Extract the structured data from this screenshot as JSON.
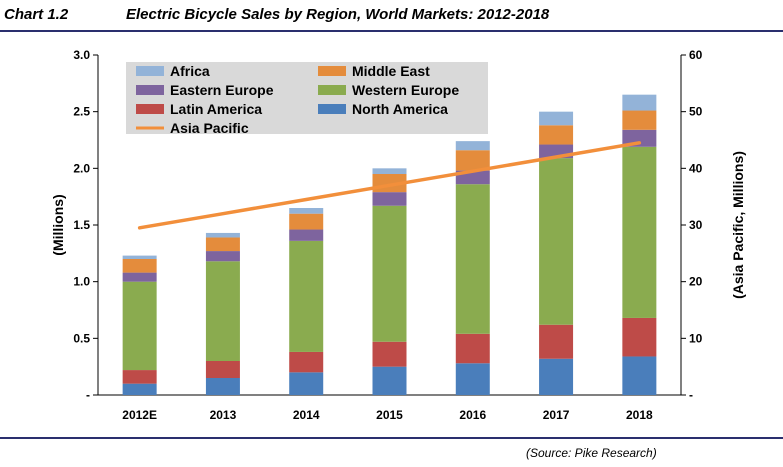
{
  "header": {
    "chart_number": "Chart 1.2",
    "title": "Electric Bicycle Sales by Region, World Markets: 2012-2018"
  },
  "footer": {
    "source": "(Source: Pike Research)"
  },
  "colors": {
    "rule": "#2a2f6e",
    "legend_bg": "#d9d9d9"
  },
  "chart_data": {
    "type": "bar",
    "stacked": true,
    "categories": [
      "2012E",
      "2013",
      "2014",
      "2015",
      "2016",
      "2017",
      "2018"
    ],
    "ylabel": "(Millions)",
    "ylabel_right": "(Asia Pacific, Millions)",
    "ylim": [
      0,
      3.0
    ],
    "ylim_right": [
      0,
      60
    ],
    "yticks": [
      {
        "value": 0,
        "label": "-"
      },
      {
        "value": 0.5,
        "label": "0.5"
      },
      {
        "value": 1.0,
        "label": "1.0"
      },
      {
        "value": 1.5,
        "label": "1.5"
      },
      {
        "value": 2.0,
        "label": "2.0"
      },
      {
        "value": 2.5,
        "label": "2.5"
      },
      {
        "value": 3.0,
        "label": "3.0"
      }
    ],
    "yticks_right": [
      {
        "value": 0,
        "label": "-"
      },
      {
        "value": 10,
        "label": "10"
      },
      {
        "value": 20,
        "label": "20"
      },
      {
        "value": 30,
        "label": "30"
      },
      {
        "value": 40,
        "label": "40"
      },
      {
        "value": 50,
        "label": "50"
      },
      {
        "value": 60,
        "label": "60"
      }
    ],
    "grid": false,
    "legend_position": "top-left",
    "series": [
      {
        "name": "North America",
        "color": "#4a7ebb",
        "values": [
          0.1,
          0.15,
          0.2,
          0.25,
          0.28,
          0.32,
          0.34
        ]
      },
      {
        "name": "Latin America",
        "color": "#be4b48",
        "values": [
          0.12,
          0.15,
          0.18,
          0.22,
          0.26,
          0.3,
          0.34
        ]
      },
      {
        "name": "Western Europe",
        "color": "#8aab4f",
        "values": [
          0.78,
          0.88,
          0.98,
          1.2,
          1.32,
          1.47,
          1.51
        ]
      },
      {
        "name": "Eastern Europe",
        "color": "#7e649e",
        "values": [
          0.08,
          0.09,
          0.1,
          0.12,
          0.12,
          0.12,
          0.15
        ]
      },
      {
        "name": "Middle East",
        "color": "#e48c3c",
        "values": [
          0.12,
          0.12,
          0.14,
          0.16,
          0.18,
          0.17,
          0.17
        ]
      },
      {
        "name": "Africa",
        "color": "#93b3d8",
        "values": [
          0.03,
          0.04,
          0.05,
          0.05,
          0.08,
          0.12,
          0.14
        ]
      }
    ],
    "line_series": {
      "name": "Asia Pacific",
      "axis": "right",
      "color": "#f28f3b",
      "values": [
        29.5,
        32.0,
        34.5,
        37.0,
        39.5,
        42.0,
        44.5
      ]
    },
    "legend_items": [
      {
        "label": "Africa",
        "color": "#93b3d8",
        "kind": "box"
      },
      {
        "label": "Middle East",
        "color": "#e48c3c",
        "kind": "box"
      },
      {
        "label": "Eastern Europe",
        "color": "#7e649e",
        "kind": "box"
      },
      {
        "label": "Western Europe",
        "color": "#8aab4f",
        "kind": "box"
      },
      {
        "label": "Latin America",
        "color": "#be4b48",
        "kind": "box"
      },
      {
        "label": "North America",
        "color": "#4a7ebb",
        "kind": "box"
      },
      {
        "label": "Asia Pacific",
        "color": "#f28f3b",
        "kind": "line"
      }
    ]
  }
}
